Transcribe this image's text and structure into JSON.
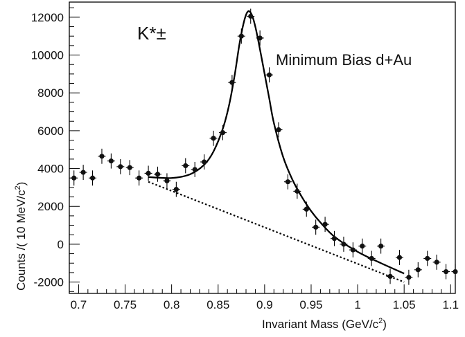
{
  "chart_data": {
    "type": "scatter",
    "title": "",
    "xlabel": "Invariant Mass (GeV/c",
    "xlabel_sup": "2",
    "xlabel_tail": ")",
    "ylabel": "Counts /( 10 MeV/c",
    "ylabel_sup": "2",
    "ylabel_tail": ")",
    "xlim": [
      0.69,
      1.105
    ],
    "ylim": [
      -2600,
      12800
    ],
    "x_ticks": [
      0.7,
      0.75,
      0.8,
      0.85,
      0.9,
      0.95,
      1.0,
      1.05,
      1.1
    ],
    "x_tick_labels": [
      "0.7",
      "0.75",
      "0.8",
      "0.85",
      "0.9",
      "0.95",
      "1",
      "1.05",
      "1.1"
    ],
    "y_ticks": [
      -2000,
      0,
      2000,
      4000,
      6000,
      8000,
      10000,
      12000
    ],
    "y_tick_labels": [
      "-2000",
      "0",
      "2000",
      "4000",
      "6000",
      "8000",
      "10000",
      "12000"
    ],
    "grid": false,
    "annotations": {
      "particle": "K*±",
      "dataset": "Minimum Bias d+Au"
    },
    "series": [
      {
        "kind": "points",
        "x": [
          0.695,
          0.705,
          0.715,
          0.725,
          0.735,
          0.745,
          0.755,
          0.765,
          0.775,
          0.785,
          0.795,
          0.805,
          0.815,
          0.825,
          0.835,
          0.845,
          0.855,
          0.865,
          0.875,
          0.885,
          0.895,
          0.905,
          0.915,
          0.925,
          0.935,
          0.945,
          0.955,
          0.965,
          0.975,
          0.985,
          0.995,
          1.005,
          1.015,
          1.025,
          1.035,
          1.045,
          1.055,
          1.065,
          1.075,
          1.085,
          1.095,
          1.105
        ],
        "y": [
          3500,
          3800,
          3500,
          4650,
          4400,
          4100,
          4050,
          3500,
          3750,
          3700,
          3350,
          2900,
          4150,
          3950,
          4350,
          5600,
          5900,
          8550,
          11000,
          12050,
          10900,
          8950,
          6050,
          3300,
          2800,
          1850,
          900,
          1050,
          300,
          0,
          -300,
          -100,
          -750,
          -100,
          -1700,
          -700,
          -1750,
          -1350,
          -750,
          -950,
          -1450,
          -1450
        ],
        "err": [
          400,
          400,
          400,
          400,
          400,
          400,
          400,
          400,
          400,
          400,
          400,
          400,
          400,
          400,
          400,
          400,
          400,
          400,
          400,
          400,
          400,
          400,
          400,
          400,
          400,
          400,
          400,
          400,
          400,
          400,
          400,
          400,
          400,
          400,
          400,
          400,
          400,
          400,
          400,
          400,
          400,
          400
        ]
      },
      {
        "kind": "fit",
        "x": [
          0.775,
          0.8,
          0.82,
          0.835,
          0.845,
          0.855,
          0.862,
          0.868,
          0.873,
          0.878,
          0.882,
          0.886,
          0.89,
          0.895,
          0.9,
          0.905,
          0.91,
          0.92,
          0.93,
          0.94,
          0.95,
          0.96,
          0.975,
          1.0,
          1.025,
          1.05
        ],
        "y": [
          3550,
          3500,
          3700,
          4200,
          4900,
          6100,
          7400,
          9000,
          10600,
          11800,
          12300,
          12150,
          11500,
          10300,
          9000,
          7700,
          6400,
          4600,
          3400,
          2500,
          1750,
          1150,
          400,
          -400,
          -1000,
          -1550
        ]
      },
      {
        "kind": "background",
        "x": [
          0.775,
          1.05
        ],
        "y": [
          3300,
          -2000
        ]
      }
    ]
  }
}
